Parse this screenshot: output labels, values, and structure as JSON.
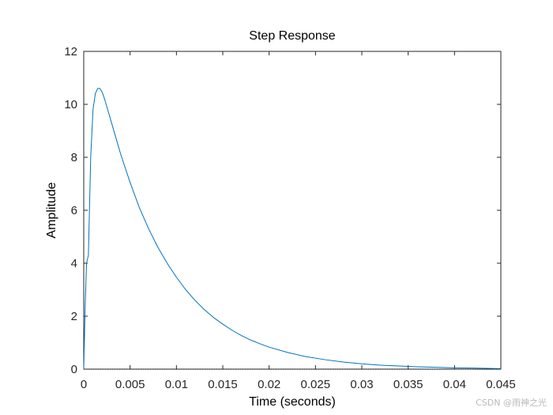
{
  "chart_data": {
    "type": "line",
    "title": "Step Response",
    "xlabel": "Time (seconds)",
    "ylabel": "Amplitude",
    "xlim": [
      0,
      0.045
    ],
    "ylim": [
      0,
      12
    ],
    "x_ticks": [
      0,
      0.005,
      0.01,
      0.015,
      0.02,
      0.025,
      0.03,
      0.035,
      0.04,
      0.045
    ],
    "x_tick_labels": [
      "0",
      "0.005",
      "0.01",
      "0.015",
      "0.02",
      "0.025",
      "0.03",
      "0.035",
      "0.04",
      "0.045"
    ],
    "y_ticks": [
      0,
      2,
      4,
      6,
      8,
      10,
      12
    ],
    "y_tick_labels": [
      "0",
      "2",
      "4",
      "6",
      "8",
      "10",
      "12"
    ],
    "grid": false,
    "series": [
      {
        "color": "#0072BD",
        "x": [
          0,
          0.00015,
          0.0003,
          0.0005,
          0.00075,
          0.001,
          0.00125,
          0.0015,
          0.00175,
          0.002,
          0.00225,
          0.0025,
          0.003,
          0.0035,
          0.004,
          0.005,
          0.006,
          0.007,
          0.008,
          0.009,
          0.01,
          0.011,
          0.012,
          0.013,
          0.014,
          0.015,
          0.016,
          0.017,
          0.018,
          0.019,
          0.02,
          0.022,
          0.024,
          0.026,
          0.028,
          0.03,
          0.032,
          0.034,
          0.036,
          0.038,
          0.04,
          0.042,
          0.045
        ],
        "y": [
          0,
          2.3,
          4.0,
          4.3,
          8.0,
          9.8,
          10.4,
          10.6,
          10.6,
          10.45,
          10.2,
          9.9,
          9.3,
          8.7,
          8.1,
          7.05,
          6.1,
          5.3,
          4.6,
          4.0,
          3.47,
          3.0,
          2.6,
          2.25,
          1.95,
          1.7,
          1.47,
          1.27,
          1.1,
          0.96,
          0.83,
          0.63,
          0.47,
          0.36,
          0.27,
          0.2,
          0.15,
          0.12,
          0.09,
          0.07,
          0.05,
          0.04,
          0.02
        ]
      }
    ],
    "reference_line": {
      "y": 0,
      "style": "dotted",
      "color": "#000000"
    }
  },
  "watermark": "CSDN @雨神之光"
}
